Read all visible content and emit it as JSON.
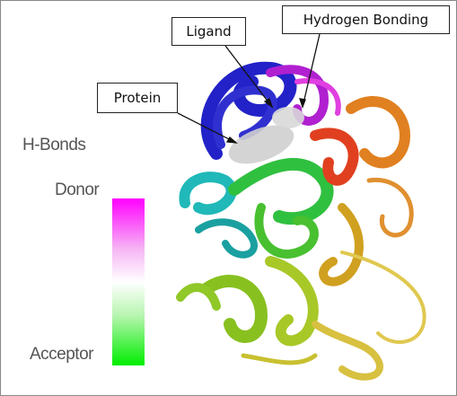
{
  "labels": {
    "ligand": "Ligand",
    "hydrogen_bonding": "Hydrogen Bonding",
    "protein": "Protein"
  },
  "legend": {
    "title": "H-Bonds",
    "top": "Donor",
    "bottom": "Acceptor"
  }
}
